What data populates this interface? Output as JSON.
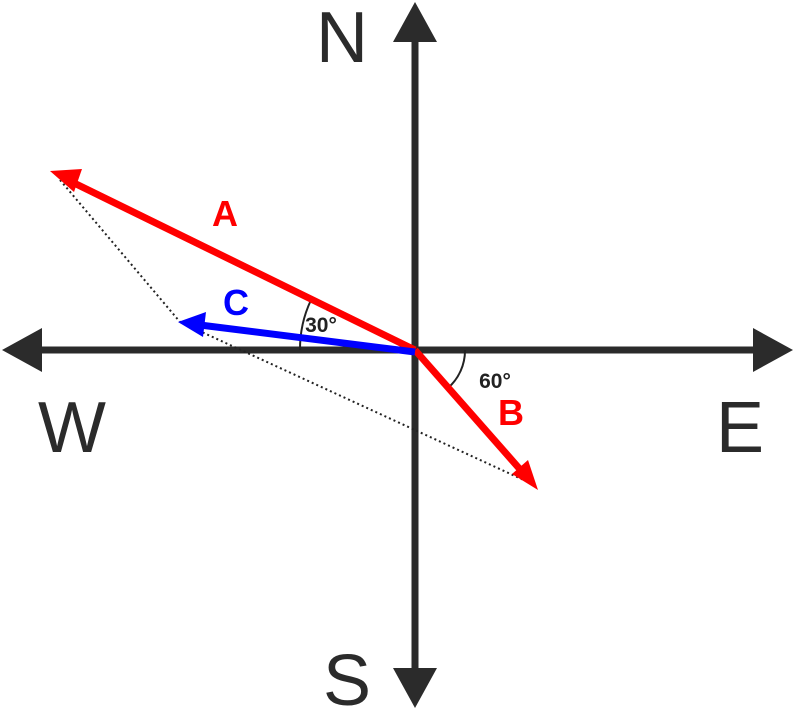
{
  "directions": {
    "north": "N",
    "south": "S",
    "east": "E",
    "west": "W"
  },
  "vectors": [
    {
      "label": "A"
    },
    {
      "label": "B"
    },
    {
      "label": "C"
    }
  ],
  "angles": [
    {
      "label": "30°"
    },
    {
      "label": "60°"
    }
  ]
}
